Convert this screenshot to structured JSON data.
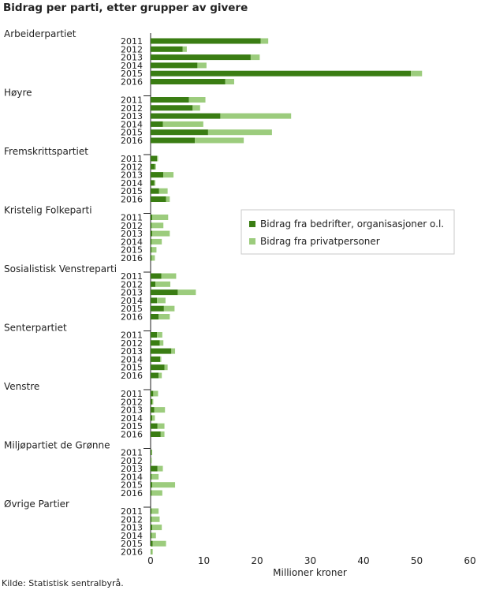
{
  "chart_data": {
    "type": "bar",
    "orientation": "horizontal",
    "stacked": true,
    "title": "Bidrag per parti, etter grupper av givere",
    "xlabel": "Millioner  kroner",
    "xlim": [
      0,
      60
    ],
    "xticks": [
      0,
      10,
      20,
      30,
      40,
      50,
      60
    ],
    "grid": false,
    "legend_position": "right",
    "years": [
      "2011",
      "2012",
      "2013",
      "2014",
      "2015",
      "2016"
    ],
    "series": [
      {
        "name": "Bidrag fra bedrifter, organisasjoner o.l.",
        "color": "#3a7d13"
      },
      {
        "name": "Bidrag fra privatpersoner",
        "color": "#9ccc7d"
      }
    ],
    "groups": [
      {
        "party": "Arbeiderpartiet",
        "values": [
          [
            20.7,
            1.4
          ],
          [
            6.0,
            0.8
          ],
          [
            18.8,
            1.7
          ],
          [
            8.8,
            1.7
          ],
          [
            48.9,
            2.1
          ],
          [
            14.0,
            1.7
          ]
        ]
      },
      {
        "party": "Høyre",
        "values": [
          [
            7.2,
            3.1
          ],
          [
            7.9,
            1.4
          ],
          [
            13.1,
            13.3
          ],
          [
            2.3,
            7.6
          ],
          [
            10.8,
            12.0
          ],
          [
            8.3,
            9.2
          ]
        ]
      },
      {
        "party": "Fremskrittspartiet",
        "values": [
          [
            1.2,
            0.2
          ],
          [
            0.8,
            0.2
          ],
          [
            2.4,
            1.9
          ],
          [
            0.7,
            0.2
          ],
          [
            1.6,
            1.6
          ],
          [
            2.9,
            0.7
          ]
        ]
      },
      {
        "party": "Kristelig Folkeparti",
        "values": [
          [
            0.3,
            3.0
          ],
          [
            0.2,
            2.2
          ],
          [
            0.3,
            3.3
          ],
          [
            0.2,
            1.9
          ],
          [
            0.2,
            0.9
          ],
          [
            0.2,
            0.6
          ]
        ]
      },
      {
        "party": "Sosialistisk Venstreparti",
        "values": [
          [
            2.0,
            2.8
          ],
          [
            0.9,
            2.8
          ],
          [
            5.1,
            3.4
          ],
          [
            1.2,
            1.6
          ],
          [
            2.5,
            2.0
          ],
          [
            1.5,
            2.1
          ]
        ]
      },
      {
        "party": "Senterpartiet",
        "values": [
          [
            1.2,
            1.0
          ],
          [
            1.7,
            0.7
          ],
          [
            3.9,
            0.7
          ],
          [
            1.8,
            0.2
          ],
          [
            2.6,
            0.6
          ],
          [
            1.5,
            0.6
          ]
        ]
      },
      {
        "party": "Venstre",
        "values": [
          [
            0.5,
            0.9
          ],
          [
            0.3,
            0.2
          ],
          [
            0.7,
            2.0
          ],
          [
            0.3,
            0.5
          ],
          [
            1.3,
            1.3
          ],
          [
            1.9,
            0.7
          ]
        ]
      },
      {
        "party": "Miljøpartiet de Grønne",
        "values": [
          [
            0.2,
            0.1
          ],
          [
            0.1,
            0.1
          ],
          [
            1.3,
            1.0
          ],
          [
            0.2,
            1.3
          ],
          [
            0.3,
            4.3
          ],
          [
            0.2,
            2.0
          ]
        ]
      },
      {
        "party": "Øvrige Partier",
        "values": [
          [
            0.2,
            1.3
          ],
          [
            0.2,
            1.5
          ],
          [
            0.3,
            1.8
          ],
          [
            0.2,
            0.8
          ],
          [
            0.4,
            2.5
          ],
          [
            0.1,
            0.3
          ]
        ]
      }
    ]
  },
  "source": "Kilde: Statistisk sentralbyrå."
}
